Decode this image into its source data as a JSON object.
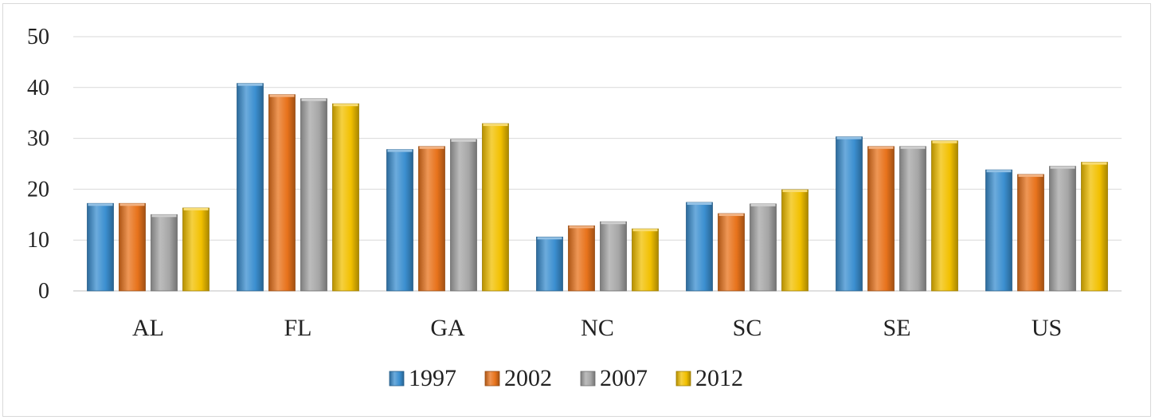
{
  "chart_data": {
    "type": "bar",
    "title": "",
    "xlabel": "",
    "ylabel": "",
    "ylim": [
      0,
      50
    ],
    "yticks": [
      "0",
      "10",
      "20",
      "30",
      "40",
      "50"
    ],
    "grid": true,
    "legend_position": "bottom",
    "categories": [
      "AL",
      "FL",
      "GA",
      "NC",
      "SC",
      "SE",
      "US"
    ],
    "series": [
      {
        "name": "1997",
        "color": "#3b8fd0",
        "values": [
          17.2,
          40.8,
          27.8,
          10.6,
          17.4,
          30.3,
          23.8
        ]
      },
      {
        "name": "2002",
        "color": "#e8731c",
        "values": [
          17.2,
          38.6,
          28.4,
          12.8,
          15.2,
          28.4,
          22.9
        ]
      },
      {
        "name": "2007",
        "color": "#a6a6a6",
        "values": [
          15.0,
          37.8,
          29.8,
          13.6,
          17.1,
          28.4,
          24.5
        ]
      },
      {
        "name": "2012",
        "color": "#f2c000",
        "values": [
          16.3,
          36.8,
          32.9,
          12.2,
          19.9,
          29.5,
          25.3
        ]
      }
    ]
  }
}
